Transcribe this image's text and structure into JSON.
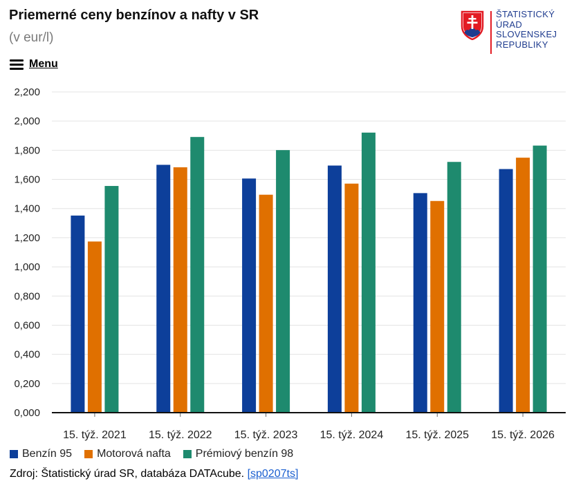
{
  "header": {
    "title": "Priemerné ceny benzínov a nafty v SR",
    "subtitle": "(v eur/l)",
    "menu_label": "Menu"
  },
  "logo": {
    "lines": [
      "ŠTATISTICKÝ",
      "ÚRAD",
      "SLOVENSKEJ",
      "REPUBLIKY"
    ],
    "text_color": "#1f3c8f",
    "accent_color": "#e31b23"
  },
  "chart_data": {
    "type": "bar",
    "title": "Priemerné ceny benzínov a nafty v SR",
    "ylabel": "v eur/l",
    "xlabel": "",
    "categories": [
      "15. týž. 2021",
      "15. týž. 2022",
      "15. týž. 2023",
      "15. týž. 2024",
      "15. týž. 2025",
      "15. týž. 2026"
    ],
    "series": [
      {
        "name": "Benzín 95",
        "color": "#0d3f9a",
        "values": [
          1.352,
          1.7,
          1.606,
          1.695,
          1.506,
          1.671
        ]
      },
      {
        "name": "Motorová nafta",
        "color": "#e07000",
        "values": [
          1.174,
          1.683,
          1.495,
          1.571,
          1.452,
          1.749
        ]
      },
      {
        "name": "Prémiový benzín 98",
        "color": "#1e8a6e",
        "values": [
          1.555,
          1.891,
          1.801,
          1.921,
          1.72,
          1.832
        ]
      }
    ],
    "ylim": [
      0,
      2.2
    ],
    "yticks": [
      "0,000",
      "0,200",
      "0,400",
      "0,600",
      "0,800",
      "1,000",
      "1,200",
      "1,400",
      "1,600",
      "1,800",
      "2,000",
      "2,200"
    ],
    "grid": true,
    "legend": "bottom-left"
  },
  "source": {
    "text": "Zdroj: Štatistický úrad SR, databáza DATAcube.",
    "link_label": "[sp0207ts]"
  }
}
